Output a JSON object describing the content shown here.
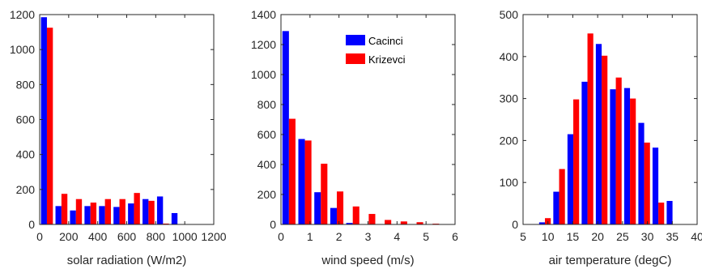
{
  "colors": {
    "cacinci": "#0000ff",
    "krizevci": "#ff0000"
  },
  "legend": {
    "placement": "top-right",
    "series": [
      "Cacinci",
      "Krizevci"
    ]
  },
  "chart_data": [
    {
      "type": "bar",
      "xlabel": "solar radiation (W/m2)",
      "ylabel": "",
      "title": "",
      "xlim": [
        0,
        1200
      ],
      "ylim": [
        0,
        1200
      ],
      "xticks": [
        0,
        200,
        400,
        600,
        800,
        1000,
        1200
      ],
      "xtick_labels": [
        "0",
        "200",
        "400",
        "600",
        "800",
        "1000",
        "1200"
      ],
      "yticks": [
        0,
        200,
        400,
        600,
        800,
        1000,
        1200
      ],
      "grid": false,
      "bin_width": 100,
      "x": [
        50,
        150,
        250,
        350,
        450,
        550,
        650,
        750,
        850,
        950
      ],
      "series": [
        {
          "name": "Cacinci",
          "values": [
            1185,
            105,
            80,
            105,
            105,
            100,
            120,
            145,
            160,
            65
          ]
        },
        {
          "name": "Krizevci",
          "values": [
            1125,
            175,
            145,
            125,
            145,
            145,
            180,
            135,
            5,
            0
          ]
        }
      ]
    },
    {
      "type": "bar",
      "xlabel": "wind speed (m/s)",
      "ylabel": "",
      "title": "",
      "xlim": [
        0,
        6
      ],
      "ylim": [
        0,
        1400
      ],
      "xticks": [
        0,
        1,
        2,
        3,
        4,
        5,
        6
      ],
      "xtick_labels": [
        "0",
        "1",
        "2",
        "3",
        "4",
        "5",
        "6"
      ],
      "yticks": [
        0,
        200,
        400,
        600,
        800,
        1000,
        1200,
        1400
      ],
      "grid": false,
      "bin_width": 0.55,
      "x": [
        0.275,
        0.825,
        1.375,
        1.925,
        2.475,
        3.025,
        3.575,
        4.125,
        4.675,
        5.225
      ],
      "series": [
        {
          "name": "Cacinci",
          "values": [
            1290,
            570,
            215,
            110,
            10,
            0,
            0,
            0,
            0,
            0
          ]
        },
        {
          "name": "Krizevci",
          "values": [
            705,
            560,
            405,
            220,
            120,
            70,
            30,
            20,
            15,
            5
          ]
        }
      ]
    },
    {
      "type": "bar",
      "xlabel": "air temperature (degC)",
      "ylabel": "",
      "title": "",
      "xlim": [
        5,
        40
      ],
      "ylim": [
        0,
        500
      ],
      "xticks": [
        5,
        10,
        15,
        20,
        25,
        30,
        35,
        40
      ],
      "xtick_labels": [
        "5",
        "10",
        "15",
        "20",
        "25",
        "30",
        "35",
        "40"
      ],
      "yticks": [
        0,
        100,
        200,
        300,
        400,
        500
      ],
      "grid": false,
      "bin_width": 2.85,
      "x": [
        9.4,
        12.25,
        15.1,
        17.95,
        20.8,
        23.65,
        26.5,
        29.35,
        32.2,
        35.05,
        37.9
      ],
      "series": [
        {
          "name": "Cacinci",
          "values": [
            5,
            78,
            215,
            340,
            430,
            322,
            325,
            242,
            183,
            56,
            0
          ]
        },
        {
          "name": "Krizevci",
          "values": [
            15,
            132,
            298,
            455,
            402,
            350,
            300,
            195,
            52,
            0,
            0
          ]
        }
      ]
    }
  ]
}
